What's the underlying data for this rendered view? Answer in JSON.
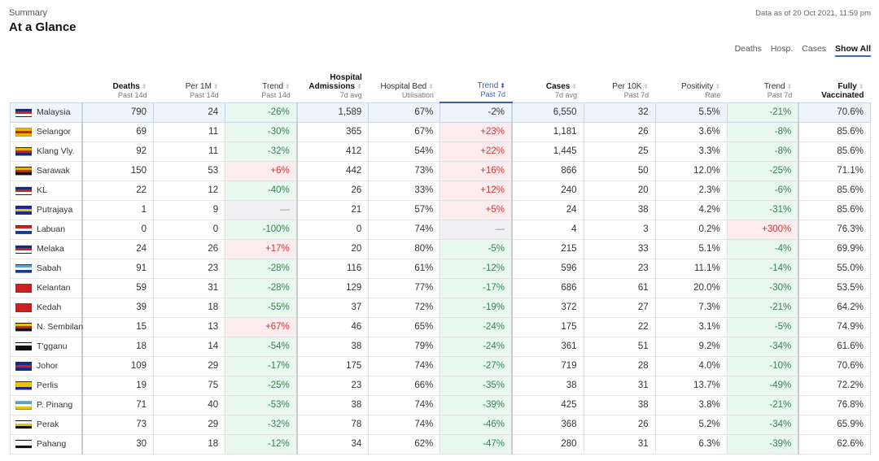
{
  "header": {
    "subtitle": "Summary",
    "title": "At a Glance",
    "as_of": "Data as of 20 Oct 2021, 11:59 pm"
  },
  "filters": [
    "Deaths",
    "Hosp.",
    "Cases",
    "Show All"
  ],
  "active_filter": "Show All",
  "columns": [
    {
      "main": "",
      "sub": ""
    },
    {
      "main": "Deaths",
      "sub": "Past 14d",
      "bold": true
    },
    {
      "main": "Per 1M",
      "sub": "Past 14d"
    },
    {
      "main": "Trend",
      "sub": "Past 14d"
    },
    {
      "main": "Hospital",
      "main2": "Admissions",
      "sub": "7d avg",
      "bold": true
    },
    {
      "main": "Hospital Bed",
      "sub": "Utilisation"
    },
    {
      "main": "Trend",
      "sub": "Past 7d",
      "sorted": true
    },
    {
      "main": "Cases",
      "sub": "7d avg",
      "bold": true
    },
    {
      "main": "Per 10K",
      "sub": "Past 7d"
    },
    {
      "main": "Positivity",
      "sub": "Rate"
    },
    {
      "main": "Trend",
      "sub": "Past 7d"
    },
    {
      "main": "Fully",
      "sub": "Vaccinated",
      "bold": true,
      "subbold": true
    }
  ],
  "trend_columns": [
    3,
    6,
    10
  ],
  "colors": {
    "green_bg": "#e9f8ee",
    "red_bg": "#fdeced",
    "national_bg": "#eef4fc",
    "sort_accent": "#3b5fa8"
  },
  "rows": [
    {
      "name": "Malaysia",
      "flag": [
        "#1a2a6c",
        "#cc1f1f",
        "#ffffff"
      ],
      "v": [
        "790",
        "24",
        "-26%",
        "1,589",
        "67%",
        "-2%",
        "6,550",
        "32",
        "5.5%",
        "-21%",
        "70.6%"
      ]
    },
    {
      "name": "Selangor",
      "flag": [
        "#e8b400",
        "#cc1f1f",
        "#e8b400"
      ],
      "v": [
        "69",
        "11",
        "-30%",
        "365",
        "67%",
        "+23%",
        "1,181",
        "26",
        "3.6%",
        "-8%",
        "85.6%"
      ]
    },
    {
      "name": "Klang Vly.",
      "flag": [
        "#e8b400",
        "#cc1f1f",
        "#1a2a6c"
      ],
      "v": [
        "92",
        "11",
        "-32%",
        "412",
        "54%",
        "+22%",
        "1,445",
        "25",
        "3.3%",
        "-8%",
        "85.6%"
      ]
    },
    {
      "name": "Sarawak",
      "flag": [
        "#e8b400",
        "#cc1f1f",
        "#111111"
      ],
      "v": [
        "150",
        "53",
        "+6%",
        "442",
        "73%",
        "+16%",
        "866",
        "50",
        "12.0%",
        "-25%",
        "71.1%"
      ]
    },
    {
      "name": "KL",
      "flag": [
        "#1a2a6c",
        "#cc1f1f",
        "#ffffff"
      ],
      "v": [
        "22",
        "12",
        "-40%",
        "26",
        "33%",
        "+12%",
        "240",
        "20",
        "2.3%",
        "-6%",
        "85.6%"
      ]
    },
    {
      "name": "Putrajaya",
      "flag": [
        "#1a2a9c",
        "#e8c400",
        "#1a2a9c"
      ],
      "v": [
        "1",
        "9",
        "—",
        "21",
        "57%",
        "+5%",
        "24",
        "38",
        "4.2%",
        "-31%",
        "85.6%"
      ]
    },
    {
      "name": "Labuan",
      "flag": [
        "#cc1f1f",
        "#ffffff",
        "#1a3a8c"
      ],
      "v": [
        "0",
        "0",
        "-100%",
        "0",
        "74%",
        "—",
        "4",
        "3",
        "0.2%",
        "+300%",
        "76.3%"
      ]
    },
    {
      "name": "Melaka",
      "flag": [
        "#1a2a6c",
        "#cc1f1f",
        "#ffffff"
      ],
      "v": [
        "24",
        "26",
        "+17%",
        "20",
        "80%",
        "-5%",
        "215",
        "33",
        "5.1%",
        "-4%",
        "69.9%"
      ]
    },
    {
      "name": "Sabah",
      "flag": [
        "#5aa0d8",
        "#ffffff",
        "#1a3a8c"
      ],
      "v": [
        "91",
        "23",
        "-28%",
        "116",
        "61%",
        "-12%",
        "596",
        "23",
        "11.1%",
        "-14%",
        "55.0%"
      ]
    },
    {
      "name": "Kelantan",
      "flag": [
        "#cc1f1f",
        "#cc1f1f",
        "#cc1f1f"
      ],
      "v": [
        "59",
        "31",
        "-28%",
        "129",
        "77%",
        "-17%",
        "686",
        "61",
        "20.0%",
        "-30%",
        "53.5%"
      ]
    },
    {
      "name": "Kedah",
      "flag": [
        "#cc1f1f",
        "#cc1f1f",
        "#cc1f1f"
      ],
      "v": [
        "39",
        "18",
        "-55%",
        "37",
        "72%",
        "-19%",
        "372",
        "27",
        "7.3%",
        "-21%",
        "64.2%"
      ]
    },
    {
      "name": "N. Sembilan",
      "flag": [
        "#e8c400",
        "#cc1f1f",
        "#111111"
      ],
      "v": [
        "15",
        "13",
        "+67%",
        "46",
        "65%",
        "-24%",
        "175",
        "22",
        "3.1%",
        "-5%",
        "74.9%"
      ]
    },
    {
      "name": "T'gganu",
      "flag": [
        "#ffffff",
        "#111111",
        "#111111"
      ],
      "v": [
        "18",
        "14",
        "-54%",
        "38",
        "79%",
        "-24%",
        "361",
        "51",
        "9.2%",
        "-34%",
        "61.6%"
      ]
    },
    {
      "name": "Johor",
      "flag": [
        "#1a2a8c",
        "#cc1f1f",
        "#1a2a8c"
      ],
      "v": [
        "109",
        "29",
        "-17%",
        "175",
        "74%",
        "-27%",
        "719",
        "28",
        "4.0%",
        "-10%",
        "70.6%"
      ]
    },
    {
      "name": "Perlis",
      "flag": [
        "#e8c400",
        "#e8c400",
        "#1a2a8c"
      ],
      "v": [
        "19",
        "75",
        "-25%",
        "23",
        "66%",
        "-35%",
        "38",
        "31",
        "13.7%",
        "-49%",
        "72.2%"
      ]
    },
    {
      "name": "P. Pinang",
      "flag": [
        "#5aa0d8",
        "#ffffff",
        "#e8c400"
      ],
      "v": [
        "71",
        "40",
        "-53%",
        "38",
        "74%",
        "-39%",
        "425",
        "38",
        "3.8%",
        "-21%",
        "76.8%"
      ]
    },
    {
      "name": "Perak",
      "flag": [
        "#ffffff",
        "#e8c400",
        "#111111"
      ],
      "v": [
        "73",
        "29",
        "-32%",
        "78",
        "74%",
        "-46%",
        "368",
        "26",
        "5.2%",
        "-34%",
        "65.9%"
      ]
    },
    {
      "name": "Pahang",
      "flag": [
        "#ffffff",
        "#ffffff",
        "#111111"
      ],
      "v": [
        "30",
        "18",
        "-12%",
        "34",
        "62%",
        "-47%",
        "280",
        "31",
        "6.3%",
        "-39%",
        "62.6%"
      ]
    }
  ]
}
